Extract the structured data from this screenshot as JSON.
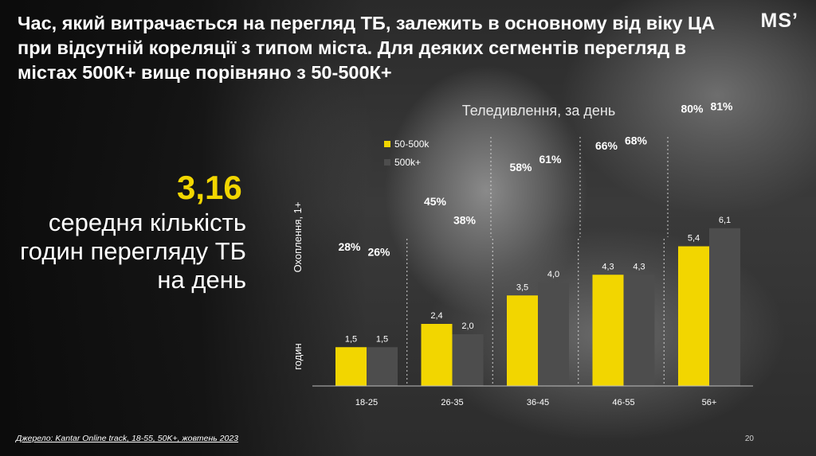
{
  "headline": "Час, який витрачається на перегляд ТБ, залежить в основному від віку ЦА при відсутній кореляції з типом міста. Для деяких сегментів перегляд в містах 500К+ вище порівняно з 50-500К+",
  "logo": "MS’",
  "highlight": {
    "value": "3,16",
    "caption": "середня кількість годин перегляду ТБ на день"
  },
  "source": "Джерело: Kantar Online track, 18-55, 50K+, жовтень 2023",
  "page_number": "20",
  "colors": {
    "series1": "#f2d600",
    "series2": "#4d4d4d",
    "accent": "#f2d600"
  },
  "chart_data": {
    "type": "bar",
    "title": "Теледивлення, за день",
    "bar_axis_label": "годин",
    "coverage_axis_label": "Охоплення, 1+",
    "categories": [
      "18-25",
      "26-35",
      "36-45",
      "46-55",
      "56+"
    ],
    "series": [
      {
        "name": "50-500k",
        "values": [
          1.5,
          2.4,
          3.5,
          4.3,
          5.4
        ],
        "value_labels": [
          "1,5",
          "2,4",
          "3,5",
          "4,3",
          "5,4"
        ],
        "coverage_pct": [
          "28%",
          "45%",
          "58%",
          "66%",
          "80%"
        ]
      },
      {
        "name": "500k+",
        "values": [
          1.5,
          2.0,
          4.0,
          4.3,
          6.1
        ],
        "value_labels": [
          "1,5",
          "2,0",
          "4,0",
          "4,3",
          "6,1"
        ],
        "coverage_pct": [
          "26%",
          "38%",
          "61%",
          "68%",
          "81%"
        ]
      }
    ],
    "coverage_values": [
      [
        28,
        45,
        58,
        66,
        80
      ],
      [
        26,
        38,
        61,
        68,
        81
      ]
    ],
    "ylim": [
      0,
      7
    ],
    "legend_position": "top-left",
    "grid": false
  }
}
